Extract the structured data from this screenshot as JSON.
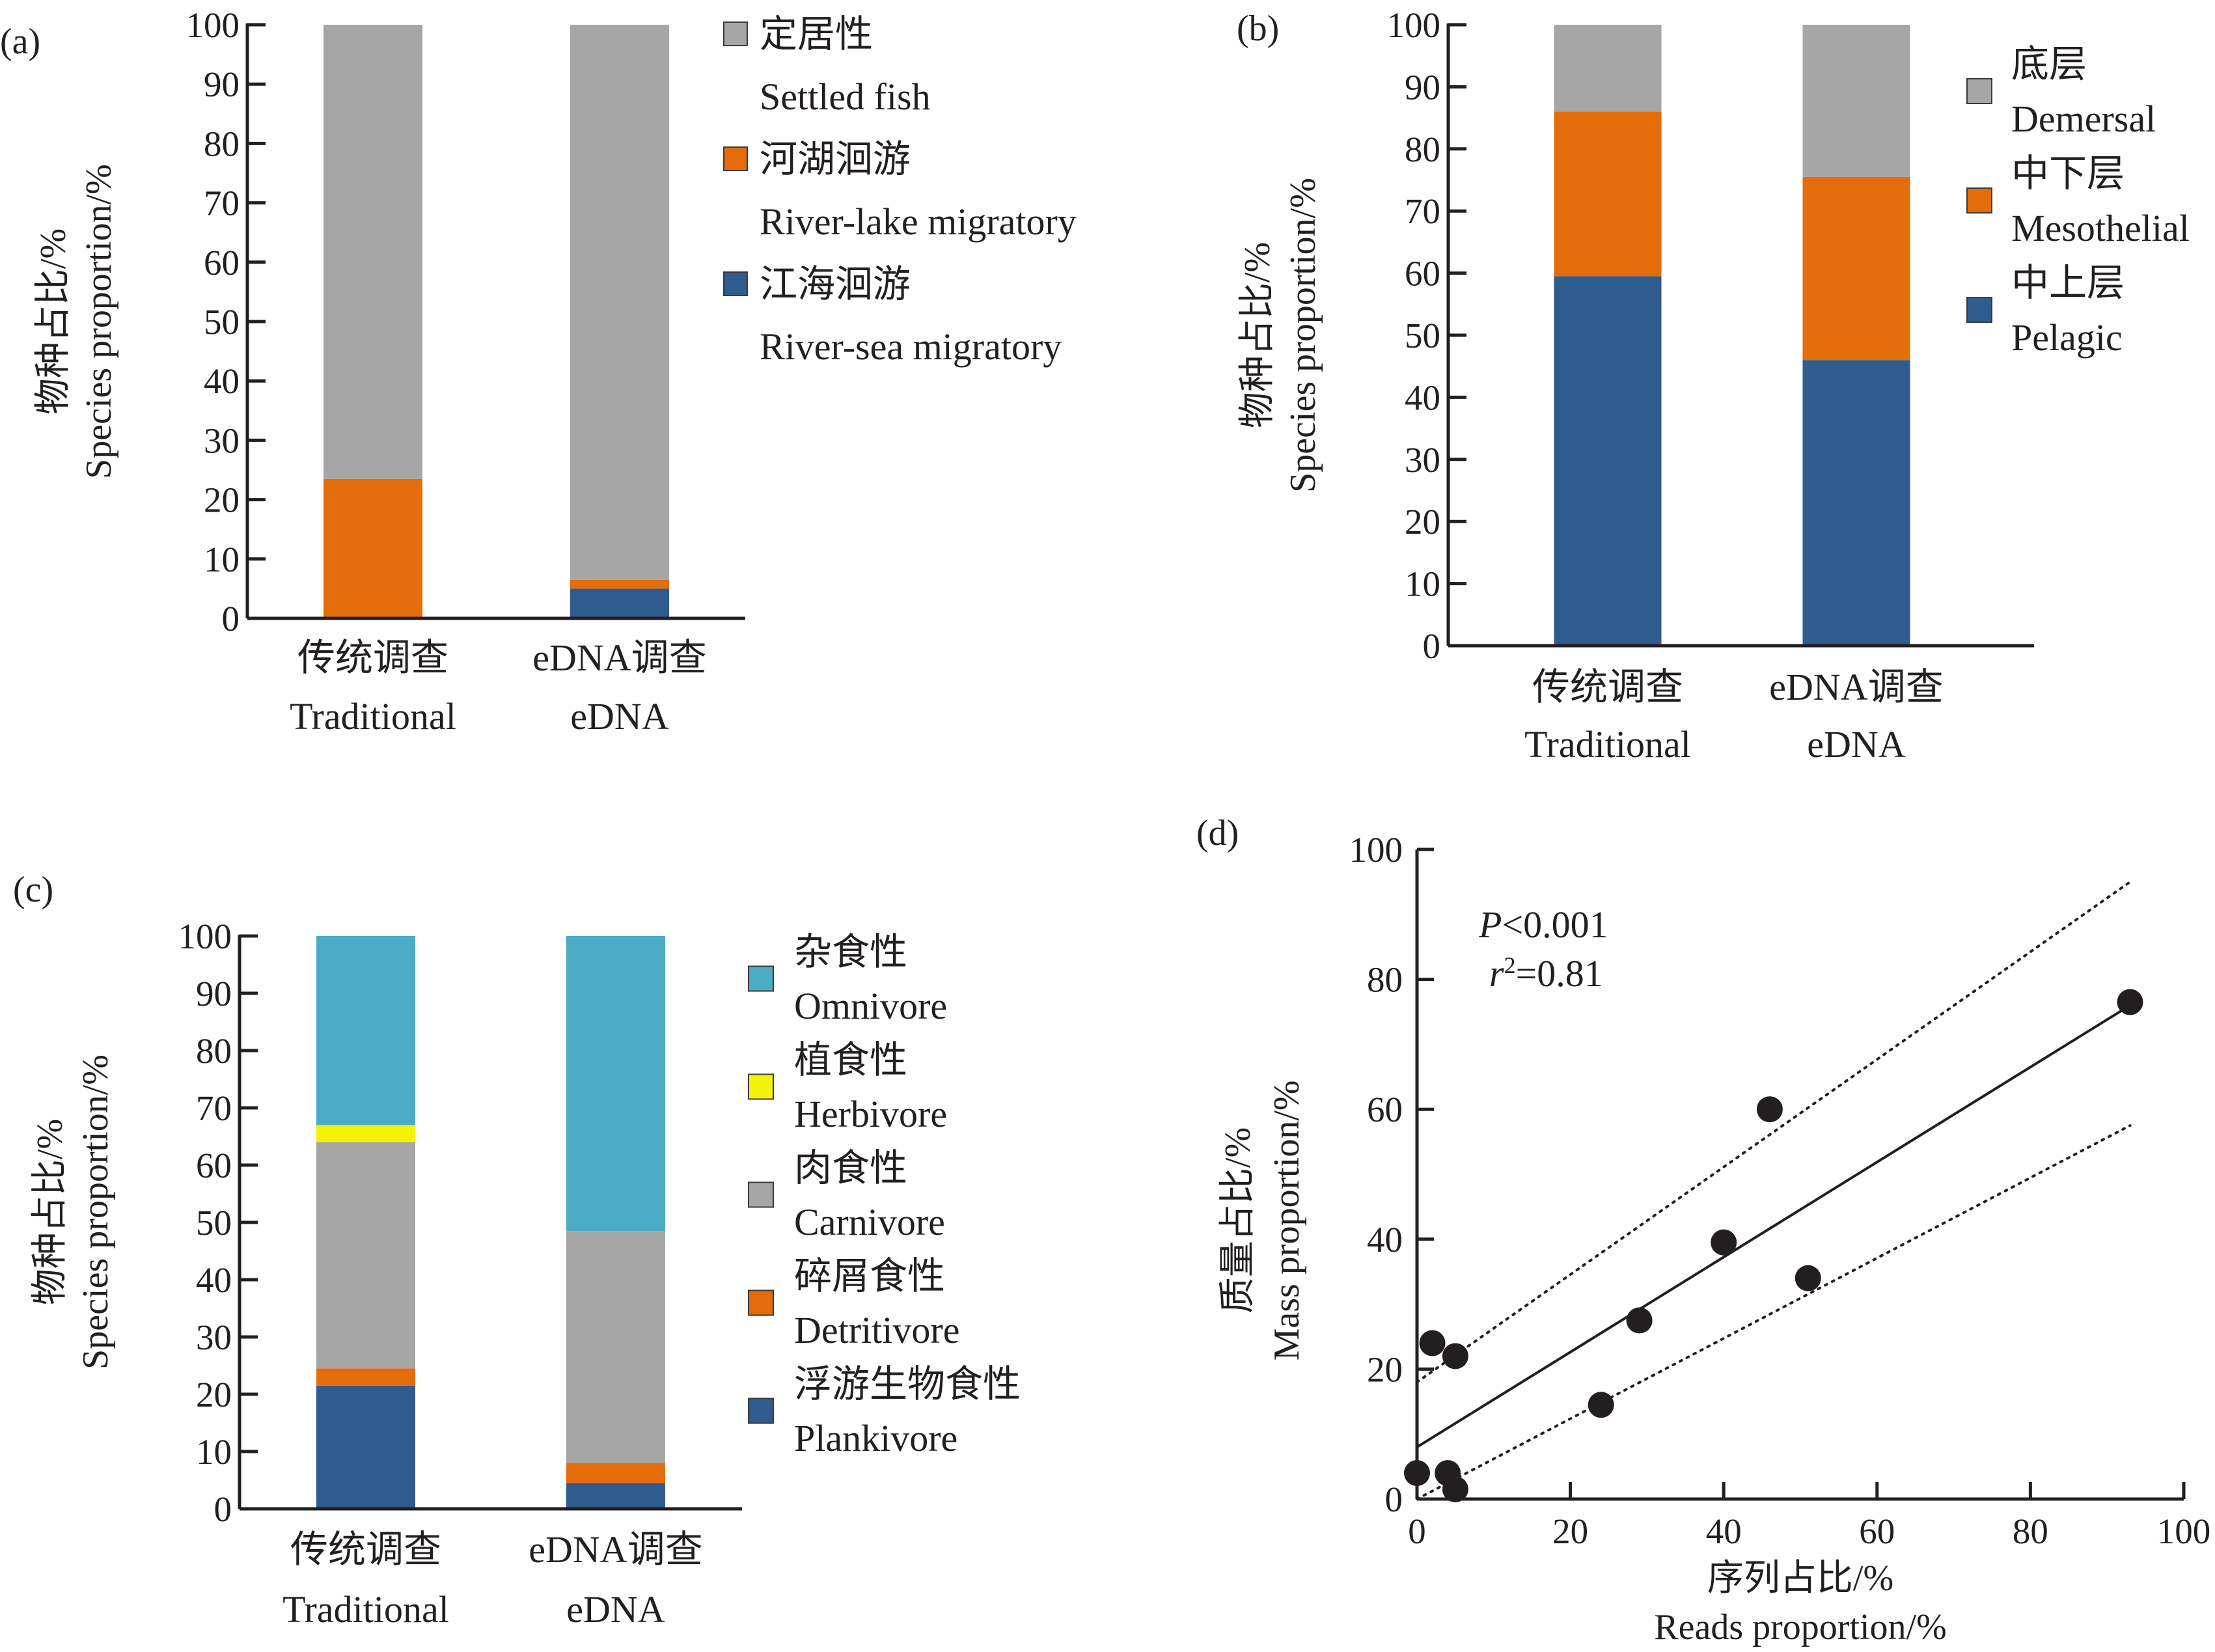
{
  "chart_data": [
    {
      "panel": "(a)",
      "type": "bar",
      "stacked": true,
      "ylabel_zh": "物种占比/%",
      "ylabel_en": "Species proportion/%",
      "ylim": [
        0,
        100
      ],
      "yticks": [
        0,
        10,
        20,
        30,
        40,
        50,
        60,
        70,
        80,
        90,
        100
      ],
      "categories": [
        {
          "zh": "传统调查",
          "en": "Traditional"
        },
        {
          "zh": "eDNA调查",
          "en": "eDNA"
        }
      ],
      "series": [
        {
          "zh": "江海洄游",
          "en": "River-sea  migratory",
          "color": "#2f5b8f",
          "values": [
            0,
            5
          ]
        },
        {
          "zh": "河湖洄游",
          "en": "River-lake migratory",
          "color": "#e46c0a",
          "values": [
            23.5,
            1.5
          ]
        },
        {
          "zh": "定居性",
          "en": "Settled fish",
          "color": "#a6a6a6",
          "values": [
            76.5,
            93.5
          ]
        }
      ],
      "legend_order": [
        2,
        1,
        0
      ],
      "legend_placement": "right"
    },
    {
      "panel": "(b)",
      "type": "bar",
      "stacked": true,
      "ylabel_zh": "物种占比/%",
      "ylabel_en": "Species proportion/%",
      "ylim": [
        0,
        100
      ],
      "yticks": [
        0,
        10,
        20,
        30,
        40,
        50,
        60,
        70,
        80,
        90,
        100
      ],
      "categories": [
        {
          "zh": "传统调查",
          "en": "Traditional"
        },
        {
          "zh": "eDNA调查",
          "en": "eDNA"
        }
      ],
      "series": [
        {
          "zh": "中上层",
          "en": "Pelagic",
          "color": "#2f5b8f",
          "values": [
            59.5,
            46
          ]
        },
        {
          "zh": "中下层",
          "en": "Mesothelial",
          "color": "#e46c0a",
          "values": [
            26.5,
            29.5
          ]
        },
        {
          "zh": "底层",
          "en": "Demersal",
          "color": "#a6a6a6",
          "values": [
            14,
            24.5
          ]
        }
      ],
      "legend_order": [
        2,
        1,
        0
      ],
      "legend_placement": "right"
    },
    {
      "panel": "(c)",
      "type": "bar",
      "stacked": true,
      "ylabel_zh": "物种占比/%",
      "ylabel_en": "Species proportion/%",
      "ylim": [
        0,
        100
      ],
      "yticks": [
        0,
        10,
        20,
        30,
        40,
        50,
        60,
        70,
        80,
        90,
        100
      ],
      "categories": [
        {
          "zh": "传统调查",
          "en": "Traditional"
        },
        {
          "zh": "eDNA调查",
          "en": "eDNA"
        }
      ],
      "series": [
        {
          "zh": "浮游生物食性",
          "en": "Plankivore",
          "color": "#2f5b8f",
          "values": [
            21.5,
            4.5
          ]
        },
        {
          "zh": "碎屑食性",
          "en": "Detritivore",
          "color": "#e46c0a",
          "values": [
            3,
            3.5
          ]
        },
        {
          "zh": "肉食性",
          "en": "Carnivore",
          "color": "#a6a6a6",
          "values": [
            39.5,
            40.5
          ]
        },
        {
          "zh": "植食性",
          "en": "Herbivore",
          "color": "#f5f20a",
          "values": [
            3,
            0
          ]
        },
        {
          "zh": "杂食性",
          "en": "Omnivore",
          "color": "#4bacc6",
          "values": [
            33,
            51.5
          ]
        }
      ],
      "legend_order": [
        4,
        3,
        2,
        1,
        0
      ],
      "legend_placement": "right"
    },
    {
      "panel": "(d)",
      "type": "scatter",
      "xlabel_zh": "序列占比/%",
      "xlabel_en": "Reads proportion/%",
      "ylabel_zh": "质量占比/%",
      "ylabel_en": "Mass proportion/%",
      "xlim": [
        0,
        100
      ],
      "ylim": [
        0,
        100
      ],
      "xticks": [
        0,
        20,
        40,
        60,
        80,
        100
      ],
      "yticks": [
        0,
        20,
        40,
        60,
        80,
        100
      ],
      "stat_p_symbol": "P",
      "stat_p_rest": "<0.001",
      "stat_r_symbol": "r",
      "stat_r_exp": "2",
      "stat_r_rest": "=0.81",
      "points": [
        {
          "x": 0,
          "y": 4
        },
        {
          "x": 2,
          "y": 24
        },
        {
          "x": 5,
          "y": 22
        },
        {
          "x": 4,
          "y": 4
        },
        {
          "x": 5,
          "y": 1.5
        },
        {
          "x": 24,
          "y": 14.5
        },
        {
          "x": 29,
          "y": 27.5
        },
        {
          "x": 40,
          "y": 39.5
        },
        {
          "x": 46,
          "y": 60
        },
        {
          "x": 51,
          "y": 34
        },
        {
          "x": 93,
          "y": 76.5
        }
      ],
      "fit_line": {
        "x": [
          0,
          93
        ],
        "y": [
          8,
          76
        ]
      },
      "ci_upper": {
        "x": [
          0,
          93
        ],
        "y": [
          18,
          95
        ]
      },
      "ci_lower": {
        "x": [
          0,
          93
        ],
        "y": [
          0,
          57.5
        ]
      }
    }
  ]
}
